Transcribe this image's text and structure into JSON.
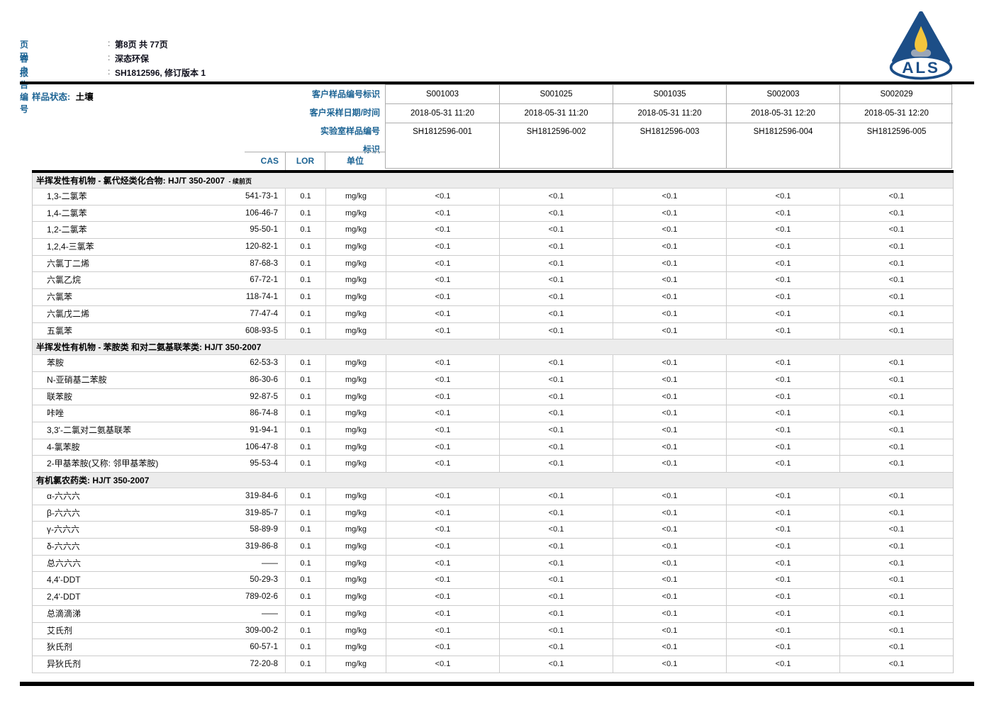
{
  "colors": {
    "accent_blue": "#1d6494",
    "logo_blue": "#1c4e87",
    "flame_yellow": "#f2c53d",
    "lamp_gray": "#9aa6b8",
    "rule_black": "#000000",
    "section_band": "#ececec"
  },
  "page_header": {
    "sep": ":",
    "rows": [
      {
        "label": "页码",
        "value": "第8页 共 77页"
      },
      {
        "label": "客户",
        "value": "深态环保"
      },
      {
        "label": "报告编号",
        "value": "SH1812596, 修订版本 1"
      }
    ]
  },
  "logo": {
    "text": "ALS"
  },
  "sample_info": {
    "status_label": "样品状态:",
    "status_value": "土壤",
    "row_labels": [
      "客户样品编号标识",
      "客户采样日期/时间",
      "实验室样品编号",
      "标识"
    ],
    "samples": [
      {
        "id": "S001003",
        "datetime": "2018-05-31 11:20",
        "lab_id": "SH1812596-001"
      },
      {
        "id": "S001025",
        "datetime": "2018-05-31 11:20",
        "lab_id": "SH1812596-002"
      },
      {
        "id": "S001035",
        "datetime": "2018-05-31 11:20",
        "lab_id": "SH1812596-003"
      },
      {
        "id": "S002003",
        "datetime": "2018-05-31 12:20",
        "lab_id": "SH1812596-004"
      },
      {
        "id": "S002029",
        "datetime": "2018-05-31 12:20",
        "lab_id": "SH1812596-005"
      }
    ]
  },
  "columns": {
    "cas": "CAS",
    "lor": "LOR",
    "unit": "单位"
  },
  "sections": [
    {
      "title": "半挥发性有机物 - 氯代烃类化合物: HJ/T 350-2007",
      "suffix": "- 续前页",
      "rows": [
        {
          "name": "1,3-二氯苯",
          "cas": "541-73-1",
          "lor": "0.1",
          "unit": "mg/kg",
          "values": [
            "<0.1",
            "<0.1",
            "<0.1",
            "<0.1",
            "<0.1"
          ]
        },
        {
          "name": "1,4-二氯苯",
          "cas": "106-46-7",
          "lor": "0.1",
          "unit": "mg/kg",
          "values": [
            "<0.1",
            "<0.1",
            "<0.1",
            "<0.1",
            "<0.1"
          ]
        },
        {
          "name": "1,2-二氯苯",
          "cas": "95-50-1",
          "lor": "0.1",
          "unit": "mg/kg",
          "values": [
            "<0.1",
            "<0.1",
            "<0.1",
            "<0.1",
            "<0.1"
          ]
        },
        {
          "name": "1,2,4-三氯苯",
          "cas": "120-82-1",
          "lor": "0.1",
          "unit": "mg/kg",
          "values": [
            "<0.1",
            "<0.1",
            "<0.1",
            "<0.1",
            "<0.1"
          ]
        },
        {
          "name": "六氯丁二烯",
          "cas": "87-68-3",
          "lor": "0.1",
          "unit": "mg/kg",
          "values": [
            "<0.1",
            "<0.1",
            "<0.1",
            "<0.1",
            "<0.1"
          ]
        },
        {
          "name": "六氯乙烷",
          "cas": "67-72-1",
          "lor": "0.1",
          "unit": "mg/kg",
          "values": [
            "<0.1",
            "<0.1",
            "<0.1",
            "<0.1",
            "<0.1"
          ]
        },
        {
          "name": "六氯苯",
          "cas": "118-74-1",
          "lor": "0.1",
          "unit": "mg/kg",
          "values": [
            "<0.1",
            "<0.1",
            "<0.1",
            "<0.1",
            "<0.1"
          ]
        },
        {
          "name": "六氯戊二烯",
          "cas": "77-47-4",
          "lor": "0.1",
          "unit": "mg/kg",
          "values": [
            "<0.1",
            "<0.1",
            "<0.1",
            "<0.1",
            "<0.1"
          ]
        },
        {
          "name": "五氯苯",
          "cas": "608-93-5",
          "lor": "0.1",
          "unit": "mg/kg",
          "values": [
            "<0.1",
            "<0.1",
            "<0.1",
            "<0.1",
            "<0.1"
          ]
        }
      ]
    },
    {
      "title": "半挥发性有机物 - 苯胺类 和对二氨基联苯类: HJ/T 350-2007",
      "suffix": "",
      "rows": [
        {
          "name": "苯胺",
          "cas": "62-53-3",
          "lor": "0.1",
          "unit": "mg/kg",
          "values": [
            "<0.1",
            "<0.1",
            "<0.1",
            "<0.1",
            "<0.1"
          ]
        },
        {
          "name": "N-亚硝基二苯胺",
          "cas": "86-30-6",
          "lor": "0.1",
          "unit": "mg/kg",
          "values": [
            "<0.1",
            "<0.1",
            "<0.1",
            "<0.1",
            "<0.1"
          ]
        },
        {
          "name": "联苯胺",
          "cas": "92-87-5",
          "lor": "0.1",
          "unit": "mg/kg",
          "values": [
            "<0.1",
            "<0.1",
            "<0.1",
            "<0.1",
            "<0.1"
          ]
        },
        {
          "name": "咔唑",
          "cas": "86-74-8",
          "lor": "0.1",
          "unit": "mg/kg",
          "values": [
            "<0.1",
            "<0.1",
            "<0.1",
            "<0.1",
            "<0.1"
          ]
        },
        {
          "name": "3,3'-二氯对二氨基联苯",
          "cas": "91-94-1",
          "lor": "0.1",
          "unit": "mg/kg",
          "values": [
            "<0.1",
            "<0.1",
            "<0.1",
            "<0.1",
            "<0.1"
          ]
        },
        {
          "name": "4-氯苯胺",
          "cas": "106-47-8",
          "lor": "0.1",
          "unit": "mg/kg",
          "values": [
            "<0.1",
            "<0.1",
            "<0.1",
            "<0.1",
            "<0.1"
          ]
        },
        {
          "name": "2-甲基苯胺(又称: 邻甲基苯胺)",
          "cas": "95-53-4",
          "lor": "0.1",
          "unit": "mg/kg",
          "values": [
            "<0.1",
            "<0.1",
            "<0.1",
            "<0.1",
            "<0.1"
          ]
        }
      ]
    },
    {
      "title": "有机氯农药类: HJ/T 350-2007",
      "suffix": "",
      "rows": [
        {
          "name": "α-六六六",
          "cas": "319-84-6",
          "lor": "0.1",
          "unit": "mg/kg",
          "values": [
            "<0.1",
            "<0.1",
            "<0.1",
            "<0.1",
            "<0.1"
          ]
        },
        {
          "name": "β-六六六",
          "cas": "319-85-7",
          "lor": "0.1",
          "unit": "mg/kg",
          "values": [
            "<0.1",
            "<0.1",
            "<0.1",
            "<0.1",
            "<0.1"
          ]
        },
        {
          "name": "γ-六六六",
          "cas": "58-89-9",
          "lor": "0.1",
          "unit": "mg/kg",
          "values": [
            "<0.1",
            "<0.1",
            "<0.1",
            "<0.1",
            "<0.1"
          ]
        },
        {
          "name": "δ-六六六",
          "cas": "319-86-8",
          "lor": "0.1",
          "unit": "mg/kg",
          "values": [
            "<0.1",
            "<0.1",
            "<0.1",
            "<0.1",
            "<0.1"
          ]
        },
        {
          "name": "总六六六",
          "cas": "——",
          "lor": "0.1",
          "unit": "mg/kg",
          "values": [
            "<0.1",
            "<0.1",
            "<0.1",
            "<0.1",
            "<0.1"
          ]
        },
        {
          "name": "4,4'-DDT",
          "cas": "50-29-3",
          "lor": "0.1",
          "unit": "mg/kg",
          "values": [
            "<0.1",
            "<0.1",
            "<0.1",
            "<0.1",
            "<0.1"
          ]
        },
        {
          "name": "2,4'-DDT",
          "cas": "789-02-6",
          "lor": "0.1",
          "unit": "mg/kg",
          "values": [
            "<0.1",
            "<0.1",
            "<0.1",
            "<0.1",
            "<0.1"
          ]
        },
        {
          "name": "总滴滴涕",
          "cas": "——",
          "lor": "0.1",
          "unit": "mg/kg",
          "values": [
            "<0.1",
            "<0.1",
            "<0.1",
            "<0.1",
            "<0.1"
          ]
        },
        {
          "name": "艾氏剂",
          "cas": "309-00-2",
          "lor": "0.1",
          "unit": "mg/kg",
          "values": [
            "<0.1",
            "<0.1",
            "<0.1",
            "<0.1",
            "<0.1"
          ]
        },
        {
          "name": "狄氏剂",
          "cas": "60-57-1",
          "lor": "0.1",
          "unit": "mg/kg",
          "values": [
            "<0.1",
            "<0.1",
            "<0.1",
            "<0.1",
            "<0.1"
          ]
        },
        {
          "name": "异狄氏剂",
          "cas": "72-20-8",
          "lor": "0.1",
          "unit": "mg/kg",
          "values": [
            "<0.1",
            "<0.1",
            "<0.1",
            "<0.1",
            "<0.1"
          ]
        }
      ]
    }
  ]
}
